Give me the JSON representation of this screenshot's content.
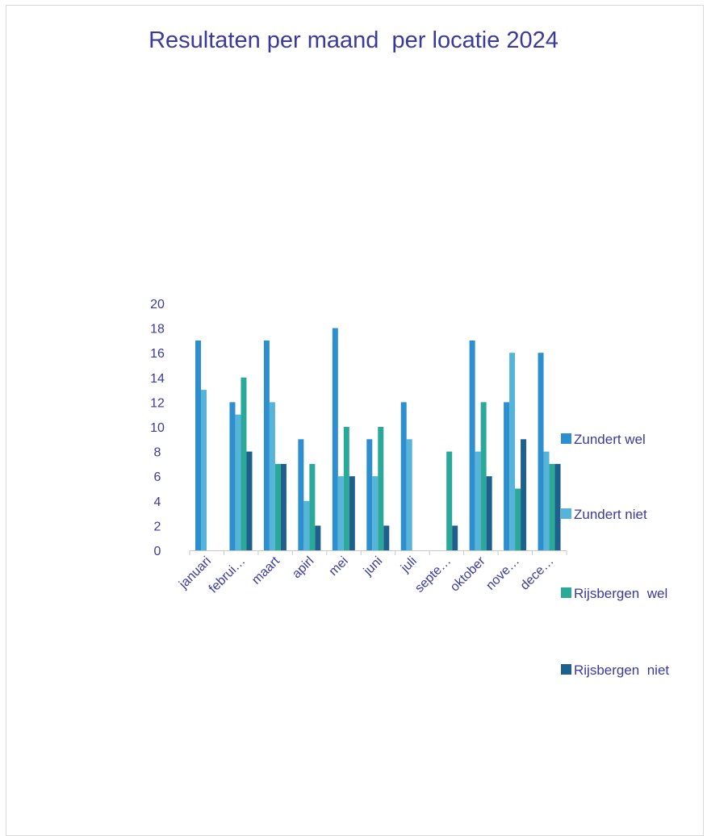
{
  "chart_data": {
    "type": "bar",
    "title": "Resultaten per maand  per locatie 2024",
    "categories": [
      "januari",
      "februi…",
      "maart",
      "apirl",
      "mei",
      "juni",
      "juli",
      "septe…",
      "oktober",
      "nove…",
      "dece…"
    ],
    "series": [
      {
        "name": "Zundert wel",
        "color": "#2e8fcf",
        "values": [
          17,
          12,
          17,
          9,
          18,
          9,
          12,
          0,
          17,
          12,
          16
        ]
      },
      {
        "name": "Zundert niet",
        "color": "#56b4d8",
        "values": [
          13,
          11,
          12,
          4,
          6,
          6,
          9,
          0,
          8,
          16,
          8
        ]
      },
      {
        "name": "Rijsbergen  wel",
        "color": "#2aa89a",
        "values": [
          0,
          14,
          7,
          7,
          10,
          10,
          0,
          8,
          12,
          5,
          7
        ]
      },
      {
        "name": "Rijsbergen  niet",
        "color": "#1f5f8b",
        "values": [
          0,
          8,
          7,
          2,
          6,
          2,
          0,
          2,
          6,
          9,
          7
        ]
      }
    ],
    "ylim": [
      0,
      20
    ],
    "yticks": [
      0,
      2,
      4,
      6,
      8,
      10,
      12,
      14,
      16,
      18,
      20
    ],
    "grid": false,
    "legend": "right"
  }
}
